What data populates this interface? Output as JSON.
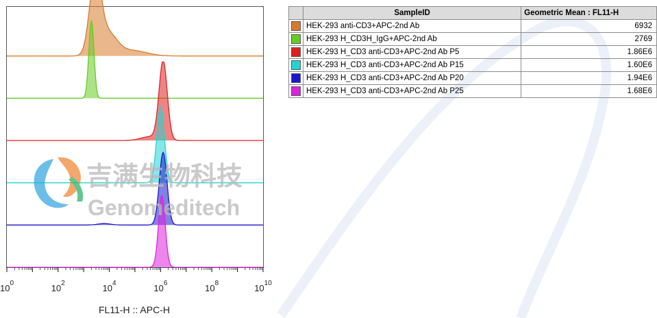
{
  "chart_data": {
    "type": "histogram-overlay",
    "xlabel": "FL11-H :: APC-H",
    "x_scale": "log",
    "xlim": [
      1,
      10000000000
    ],
    "tick_labels": [
      {
        "base": "10",
        "exp": "0",
        "value": 1
      },
      {
        "base": "10",
        "exp": "2",
        "value": 100
      },
      {
        "base": "10",
        "exp": "4",
        "value": 10000
      },
      {
        "base": "10",
        "exp": "6",
        "value": 1000000
      },
      {
        "base": "10",
        "exp": "8",
        "value": 100000000
      },
      {
        "base": "10",
        "exp": "10",
        "value": 10000000000
      }
    ],
    "series": [
      {
        "name": "HEK-293 anti-CD3+APC-2nd Ab",
        "color": "#d97a2b",
        "geometric_mean": "6932"
      },
      {
        "name": "HEK-293 H_CD3H_IgG+APC-2nd Ab",
        "color": "#66cc22",
        "geometric_mean": "2769"
      },
      {
        "name": "HEK-293 H_CD3 anti-CD3+APC-2nd Ab P5",
        "color": "#e02020",
        "geometric_mean": "1.86E6"
      },
      {
        "name": "HEK-293 H_CD3 anti-CD3+APC-2nd Ab P15",
        "color": "#22d4d4",
        "geometric_mean": "1.60E6"
      },
      {
        "name": "HEK-293 H_CD3 anti-CD3+APC-2nd Ab P20",
        "color": "#1a1acc",
        "geometric_mean": "1.94E6"
      },
      {
        "name": "HEK-293 H_CD3 anti-CD3+APC-2nd Ab P25",
        "color": "#dd22dd",
        "geometric_mean": "1.68E6"
      }
    ]
  },
  "table": {
    "header_sample": "SampleID",
    "header_value": "Geometric Mean : FL11-H"
  },
  "watermark": {
    "cn_text": "吉满生物科技",
    "en_text": "Genomeditech"
  }
}
